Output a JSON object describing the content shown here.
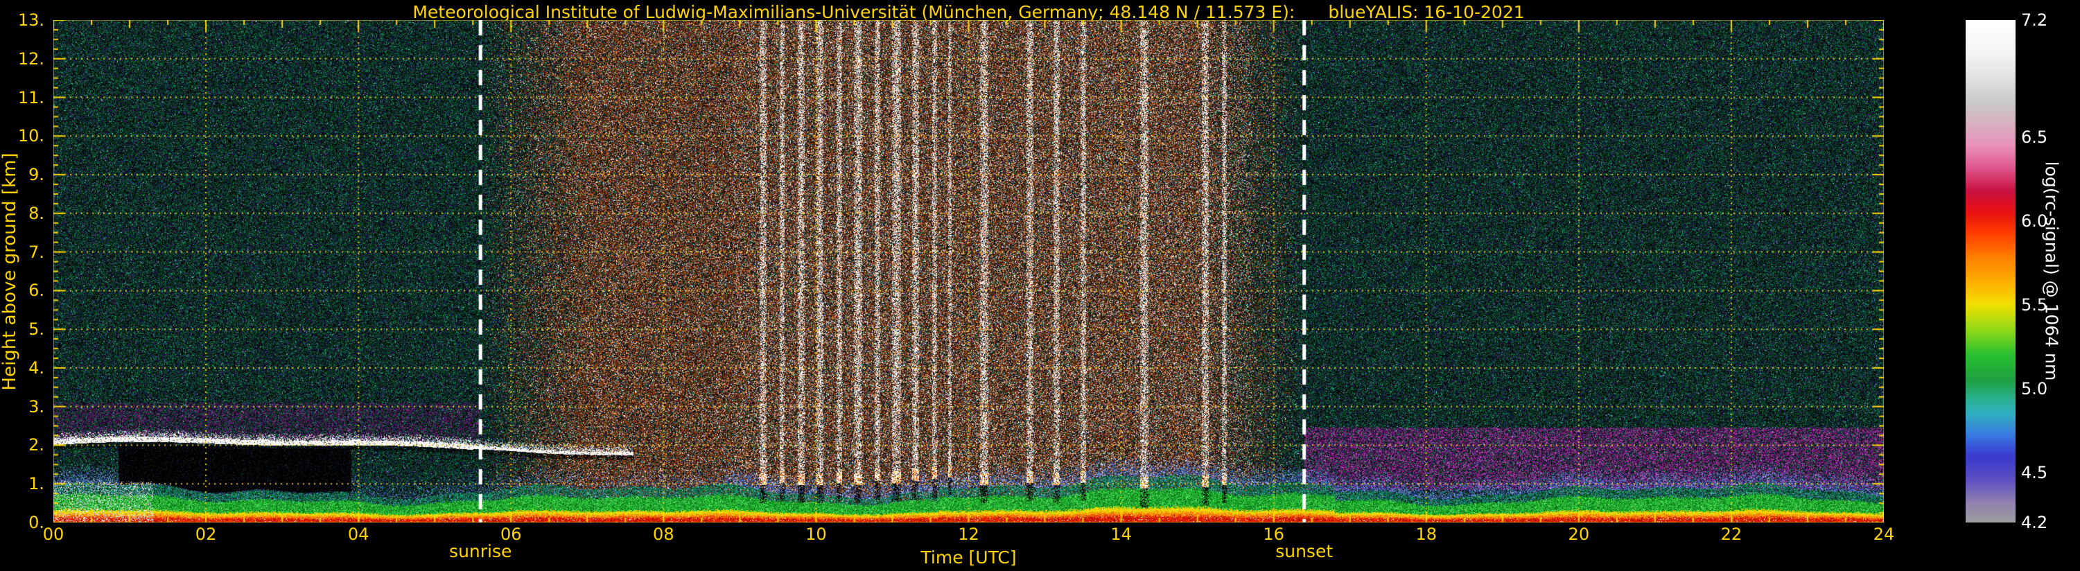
{
  "header": {
    "title": "Meteorological Institute of Ludwig-Maximilians-Universität (München, Germany; 48.148 N / 11.573 E):",
    "dataset": "blueYALIS: 16-10-2021"
  },
  "colors": {
    "background": "#000000",
    "axis_text": "#ffd400",
    "grid": "#ffd800",
    "colorbar_text": "#ffffff",
    "event_line": "#ffffff"
  },
  "chart_data": {
    "type": "heatmap",
    "title": "Meteorological Institute of Ludwig-Maximilians-Universität (München, Germany; 48.148 N / 11.573 E): blueYALIS: 16-10-2021",
    "x": {
      "label": "Time [UTC]",
      "min": 0,
      "max": 24,
      "tick_values": [
        0,
        2,
        4,
        6,
        8,
        10,
        12,
        14,
        16,
        18,
        20,
        22,
        24
      ],
      "tick_labels": [
        "00",
        "02",
        "04",
        "06",
        "08",
        "10",
        "12",
        "14",
        "16",
        "18",
        "20",
        "22",
        "24"
      ]
    },
    "y": {
      "label": "Height above ground [km]",
      "min": 0,
      "max": 13,
      "tick_values": [
        0,
        1,
        2,
        3,
        4,
        5,
        6,
        7,
        8,
        9,
        10,
        11,
        12,
        13
      ],
      "tick_labels": [
        "0.",
        "1.",
        "2.",
        "3.",
        "4.",
        "5.",
        "6.",
        "7.",
        "8.",
        "9.",
        "10.",
        "11.",
        "12.",
        "13."
      ]
    },
    "colorbar": {
      "label": "log(rc-signal) @ 1064 nm",
      "min": 4.2,
      "max": 7.2,
      "tick_values": [
        7.2,
        6.5,
        6.0,
        5.5,
        5.0,
        4.5,
        4.2
      ],
      "tick_labels": [
        "7.2",
        "6.5",
        "6.0",
        "5.5",
        "5.0",
        "4.5",
        "4.2"
      ],
      "gradient_stops": [
        [
          4.2,
          "#9e9e9e"
        ],
        [
          4.32,
          "#9080b0"
        ],
        [
          4.45,
          "#6050c0"
        ],
        [
          4.6,
          "#3a3ad0"
        ],
        [
          4.72,
          "#3878e0"
        ],
        [
          4.85,
          "#30b0c0"
        ],
        [
          4.95,
          "#28b088"
        ],
        [
          5.05,
          "#20a040"
        ],
        [
          5.2,
          "#28c030"
        ],
        [
          5.35,
          "#90d818"
        ],
        [
          5.5,
          "#f0e000"
        ],
        [
          5.62,
          "#ffb400"
        ],
        [
          5.78,
          "#ff8000"
        ],
        [
          5.92,
          "#ff4000"
        ],
        [
          6.05,
          "#e81010"
        ],
        [
          6.18,
          "#c81040"
        ],
        [
          6.32,
          "#e05890"
        ],
        [
          6.45,
          "#e890b8"
        ],
        [
          6.58,
          "#d8b0c0"
        ],
        [
          6.7,
          "#c8c8c8"
        ],
        [
          6.85,
          "#e0e0e0"
        ],
        [
          7.0,
          "#f4f4f4"
        ],
        [
          7.2,
          "#ffffff"
        ]
      ]
    },
    "events": {
      "sunrise_label": "sunrise",
      "sunrise_utc": 5.6,
      "sunset_label": "sunset",
      "sunset_utc": 16.4
    },
    "features": {
      "boundary_layer": "continuous aerosol layer below ~1 km all day (strong signal: red/yellow near ground, green above)",
      "boundary_layer_mean_top_km": 0.85,
      "cloud_layer": {
        "description": "thin strongly scattering layer near 2 km",
        "start_utc": 0,
        "end_utc": 7.6,
        "height_km": 2.0
      },
      "attenuated_zone": {
        "description": "black fully attenuated region beneath the 2 km layer",
        "start_utc": 0.85,
        "end_utc": 3.9,
        "from_km": 1.0,
        "to_km": 1.9
      },
      "precipitation_columns": "many narrow saturated white columns between ~09:15 and ~15:30 UTC with bright cloud bases near 1 km",
      "daytime_background": "elevated solar background noise (orange/brown speckle) between sunrise and sunset",
      "nighttime_residual_layer": "magenta/purple layer ~1-2.5 km visible before sunrise and after sunset"
    },
    "render": {
      "grid": {
        "x_step_utc": 2,
        "y_step_km": 1,
        "style": "dotted"
      },
      "precip_columns": [
        [
          9.3,
          0.09,
          1.0
        ],
        [
          9.55,
          0.07,
          1.05
        ],
        [
          9.8,
          0.09,
          1.0
        ],
        [
          10.05,
          0.09,
          1.0
        ],
        [
          10.3,
          0.07,
          1.05
        ],
        [
          10.55,
          0.11,
          1.0
        ],
        [
          10.8,
          0.07,
          1.1
        ],
        [
          11.05,
          0.12,
          1.05
        ],
        [
          11.3,
          0.09,
          1.1
        ],
        [
          11.55,
          0.07,
          1.15
        ],
        [
          11.75,
          0.05,
          1.2
        ],
        [
          12.2,
          0.11,
          1.0
        ],
        [
          12.8,
          0.09,
          1.05
        ],
        [
          13.15,
          0.09,
          1.0
        ],
        [
          13.5,
          0.07,
          1.05
        ],
        [
          14.3,
          0.11,
          0.9
        ],
        [
          15.1,
          0.09,
          0.95
        ],
        [
          15.35,
          0.06,
          1.0
        ]
      ],
      "palettes": {
        "night": [
          [
            "#000000",
            30
          ],
          [
            "#04200e",
            16
          ],
          [
            "#0a3a1c",
            22
          ],
          [
            "#0f5a30",
            14
          ],
          [
            "#15705a",
            6
          ],
          [
            "#0b2a50",
            8
          ],
          [
            "#1c1464",
            5
          ],
          [
            "#321058",
            7
          ],
          [
            "#5a1490",
            2
          ],
          [
            "#16a06a",
            5
          ],
          [
            "#40d8a8",
            1.2
          ],
          [
            "#c8d8ff",
            0.4
          ]
        ],
        "day": [
          [
            "#000000",
            16
          ],
          [
            "#46180a",
            20
          ],
          [
            "#743010",
            24
          ],
          [
            "#a04414",
            20
          ],
          [
            "#c05a18",
            10
          ],
          [
            "#e07828",
            5
          ],
          [
            "#ffffff",
            6
          ],
          [
            "#d8d0c8",
            4
          ],
          [
            "#0e5030",
            9
          ],
          [
            "#14407a",
            6
          ],
          [
            "#601850",
            5
          ],
          [
            "#ffd060",
            2
          ]
        ],
        "purple_left": [
          [
            "#6a1468",
            5
          ],
          [
            "#8c1c8c",
            4
          ],
          [
            "#4a105a",
            6
          ],
          [
            "#b030a0",
            2
          ],
          [
            "#2a0a3a",
            4
          ]
        ],
        "purple_right": [
          [
            "#a01890",
            5
          ],
          [
            "#c040b0",
            4
          ],
          [
            "#70106a",
            5
          ],
          [
            "#e068d0",
            2
          ],
          [
            "#481050",
            4
          ],
          [
            "#3a1a80",
            2
          ]
        ],
        "halo": [
          [
            "#5578cc",
            4
          ],
          [
            "#8099dd",
            3
          ],
          [
            "#3350aa",
            4
          ],
          [
            "#aabbee",
            1.5
          ],
          [
            "#204080",
            3
          ]
        ],
        "red": [
          [
            "#e81800",
            5
          ],
          [
            "#c01000",
            4
          ],
          [
            "#ff4800",
            3
          ],
          [
            "#900800",
            2
          ],
          [
            "#ffffff",
            0.7
          ]
        ],
        "orange": [
          [
            "#ff7800",
            5
          ],
          [
            "#ff9c00",
            4
          ],
          [
            "#e85800",
            3
          ],
          [
            "#ffc830",
            2
          ]
        ],
        "yellow": [
          [
            "#ffe000",
            5
          ],
          [
            "#e8d800",
            3
          ],
          [
            "#b8d800",
            2
          ],
          [
            "#ffb000",
            2
          ]
        ],
        "green": [
          [
            "#18b028",
            5
          ],
          [
            "#30cc40",
            4
          ],
          [
            "#0e8c1e",
            4
          ],
          [
            "#50e058",
            2
          ],
          [
            "#086014",
            3
          ],
          [
            "#80e880",
            1
          ]
        ],
        "green_fade": [
          [
            "#108c3c",
            4
          ],
          [
            "#0a6040",
            4
          ],
          [
            "#18a880",
            3
          ],
          [
            "#2878b0",
            2
          ],
          [
            "#88aadd",
            1.5
          ],
          [
            "#0a3a28",
            3
          ]
        ],
        "cloud": [
          [
            "#ffffff",
            14
          ],
          [
            "#e8e8e8",
            4
          ],
          [
            "#ffe8a0",
            2
          ],
          [
            "#c0c8ff",
            1
          ],
          [
            "#000000",
            1.5
          ]
        ],
        "cloud_fuzz": [
          [
            "#ffffff",
            5
          ],
          [
            "#cfd8ff",
            3
          ],
          [
            "#ffd890",
            2
          ],
          [
            "#9aa8d8",
            2
          ]
        ],
        "dark_speck": [
          [
            "#101a30",
            3
          ],
          [
            "#1a0a2a",
            3
          ],
          [
            "#0a241a",
            3
          ],
          [
            "#282828",
            2
          ],
          [
            "#203a60",
            1
          ]
        ],
        "column": [
          [
            "#ffffff",
            11
          ],
          [
            "#d8d8d8",
            4
          ],
          [
            "#ffb870",
            2
          ],
          [
            "#ff6828",
            1
          ],
          [
            "#000000",
            3
          ],
          [
            "#a0a0a0",
            2
          ]
        ],
        "cloud_base": [
          [
            "#ffffff",
            12
          ],
          [
            "#ffe060",
            3
          ],
          [
            "#ff4000",
            3
          ],
          [
            "#000000",
            2
          ],
          [
            "#ffa000",
            2
          ]
        ]
      }
    }
  }
}
